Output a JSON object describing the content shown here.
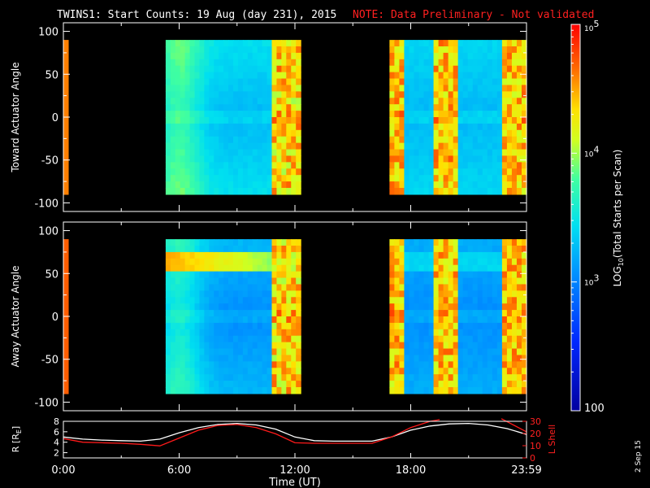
{
  "chart_data": [
    {
      "type": "heatmap",
      "title": "TWINS1: Start Counts: 19 Aug (day 231), 2015",
      "note": "NOTE: Data Preliminary - Not validated",
      "ylabel": "Toward Actuator Angle",
      "ylim": [
        -110,
        110
      ],
      "yticks": [
        "100",
        "50",
        "0",
        "-50",
        "-100"
      ],
      "xlim": [
        0,
        24
      ],
      "data_segments": [
        {
          "t_start": 0.0,
          "t_end": 0.25,
          "angle_range": [
            -90,
            90
          ],
          "log_counts": 4.6
        },
        {
          "t_start": 5.3,
          "t_end": 12.3,
          "angle_range": [
            -90,
            90
          ],
          "log_counts_low": 3.0,
          "log_counts_high": 4.6
        },
        {
          "t_start": 16.9,
          "t_end": 24.0,
          "angle_range": [
            -90,
            90
          ],
          "log_counts_low": 3.0,
          "log_counts_high": 4.7
        }
      ]
    },
    {
      "type": "heatmap",
      "ylabel": "Away Actuator Angle",
      "ylim": [
        -110,
        110
      ],
      "yticks": [
        "100",
        "50",
        "0",
        "-50",
        "-100"
      ],
      "xlim": [
        0,
        24
      ],
      "data_segments": [
        {
          "t_start": 0.0,
          "t_end": 0.25,
          "angle_range": [
            -90,
            90
          ],
          "log_counts": 4.7
        },
        {
          "t_start": 5.3,
          "t_end": 12.3,
          "angle_range": [
            -90,
            90
          ],
          "log_counts_low": 2.8,
          "log_counts_high": 4.7
        },
        {
          "t_start": 16.9,
          "t_end": 24.0,
          "angle_range": [
            -90,
            90
          ],
          "log_counts_low": 2.8,
          "log_counts_high": 4.7
        }
      ]
    },
    {
      "type": "line",
      "xlabel": "Time (UT)",
      "xticks": [
        "0:00",
        "6:00",
        "12:00",
        "18:00",
        "23:59"
      ],
      "xlim": [
        0,
        24
      ],
      "ylabel_left": "R [R",
      "ylabel_left_sub": "E",
      "ylabel_left_end": "]",
      "ylim_left": [
        1,
        8
      ],
      "yticks_left": [
        "8",
        "6",
        "4",
        "2"
      ],
      "ylabel_right": "L Shell",
      "ylim_right": [
        0,
        30
      ],
      "yticks_right": [
        "30",
        "20",
        "10",
        "0"
      ],
      "series": [
        {
          "color": "#ffffff",
          "x": [
            0,
            1,
            2,
            3,
            4,
            5,
            6,
            7,
            8,
            9,
            10,
            11,
            12,
            13,
            14,
            15,
            16,
            17,
            18,
            19,
            20,
            21,
            22,
            23,
            24
          ],
          "y": [
            5.0,
            4.6,
            4.4,
            4.3,
            4.2,
            4.6,
            5.8,
            6.8,
            7.4,
            7.6,
            7.3,
            6.5,
            5.0,
            4.3,
            4.2,
            4.2,
            4.2,
            5.0,
            6.3,
            7.1,
            7.5,
            7.6,
            7.3,
            6.6,
            5.5
          ]
        },
        {
          "color": "#ff1a1a",
          "x": [
            0,
            1,
            2,
            3,
            4,
            5,
            6,
            7,
            8,
            9,
            10,
            11,
            12,
            13,
            14,
            15,
            16,
            17,
            18,
            19,
            19.5
          ],
          "y": [
            4.7,
            4.0,
            3.9,
            3.8,
            3.6,
            3.3,
            4.8,
            6.3,
            7.2,
            7.4,
            6.8,
            5.6,
            3.9,
            3.8,
            3.8,
            3.8,
            3.8,
            5.0,
            6.8,
            8.0,
            8.6
          ]
        }
      ]
    }
  ],
  "colorbar": {
    "label": "(Total Starts per Scan)",
    "label_prefix": "LOG",
    "label_sub": "10",
    "range_log": [
      2,
      5
    ],
    "ticks": [
      {
        "text": "10",
        "sup": "5",
        "v": 5
      },
      {
        "text": "10",
        "sup": "4",
        "v": 4
      },
      {
        "text": "10",
        "sup": "3",
        "v": 3
      },
      {
        "text": "100",
        "sup": "",
        "v": 2
      }
    ]
  },
  "datestamp": "2 Sep 15"
}
